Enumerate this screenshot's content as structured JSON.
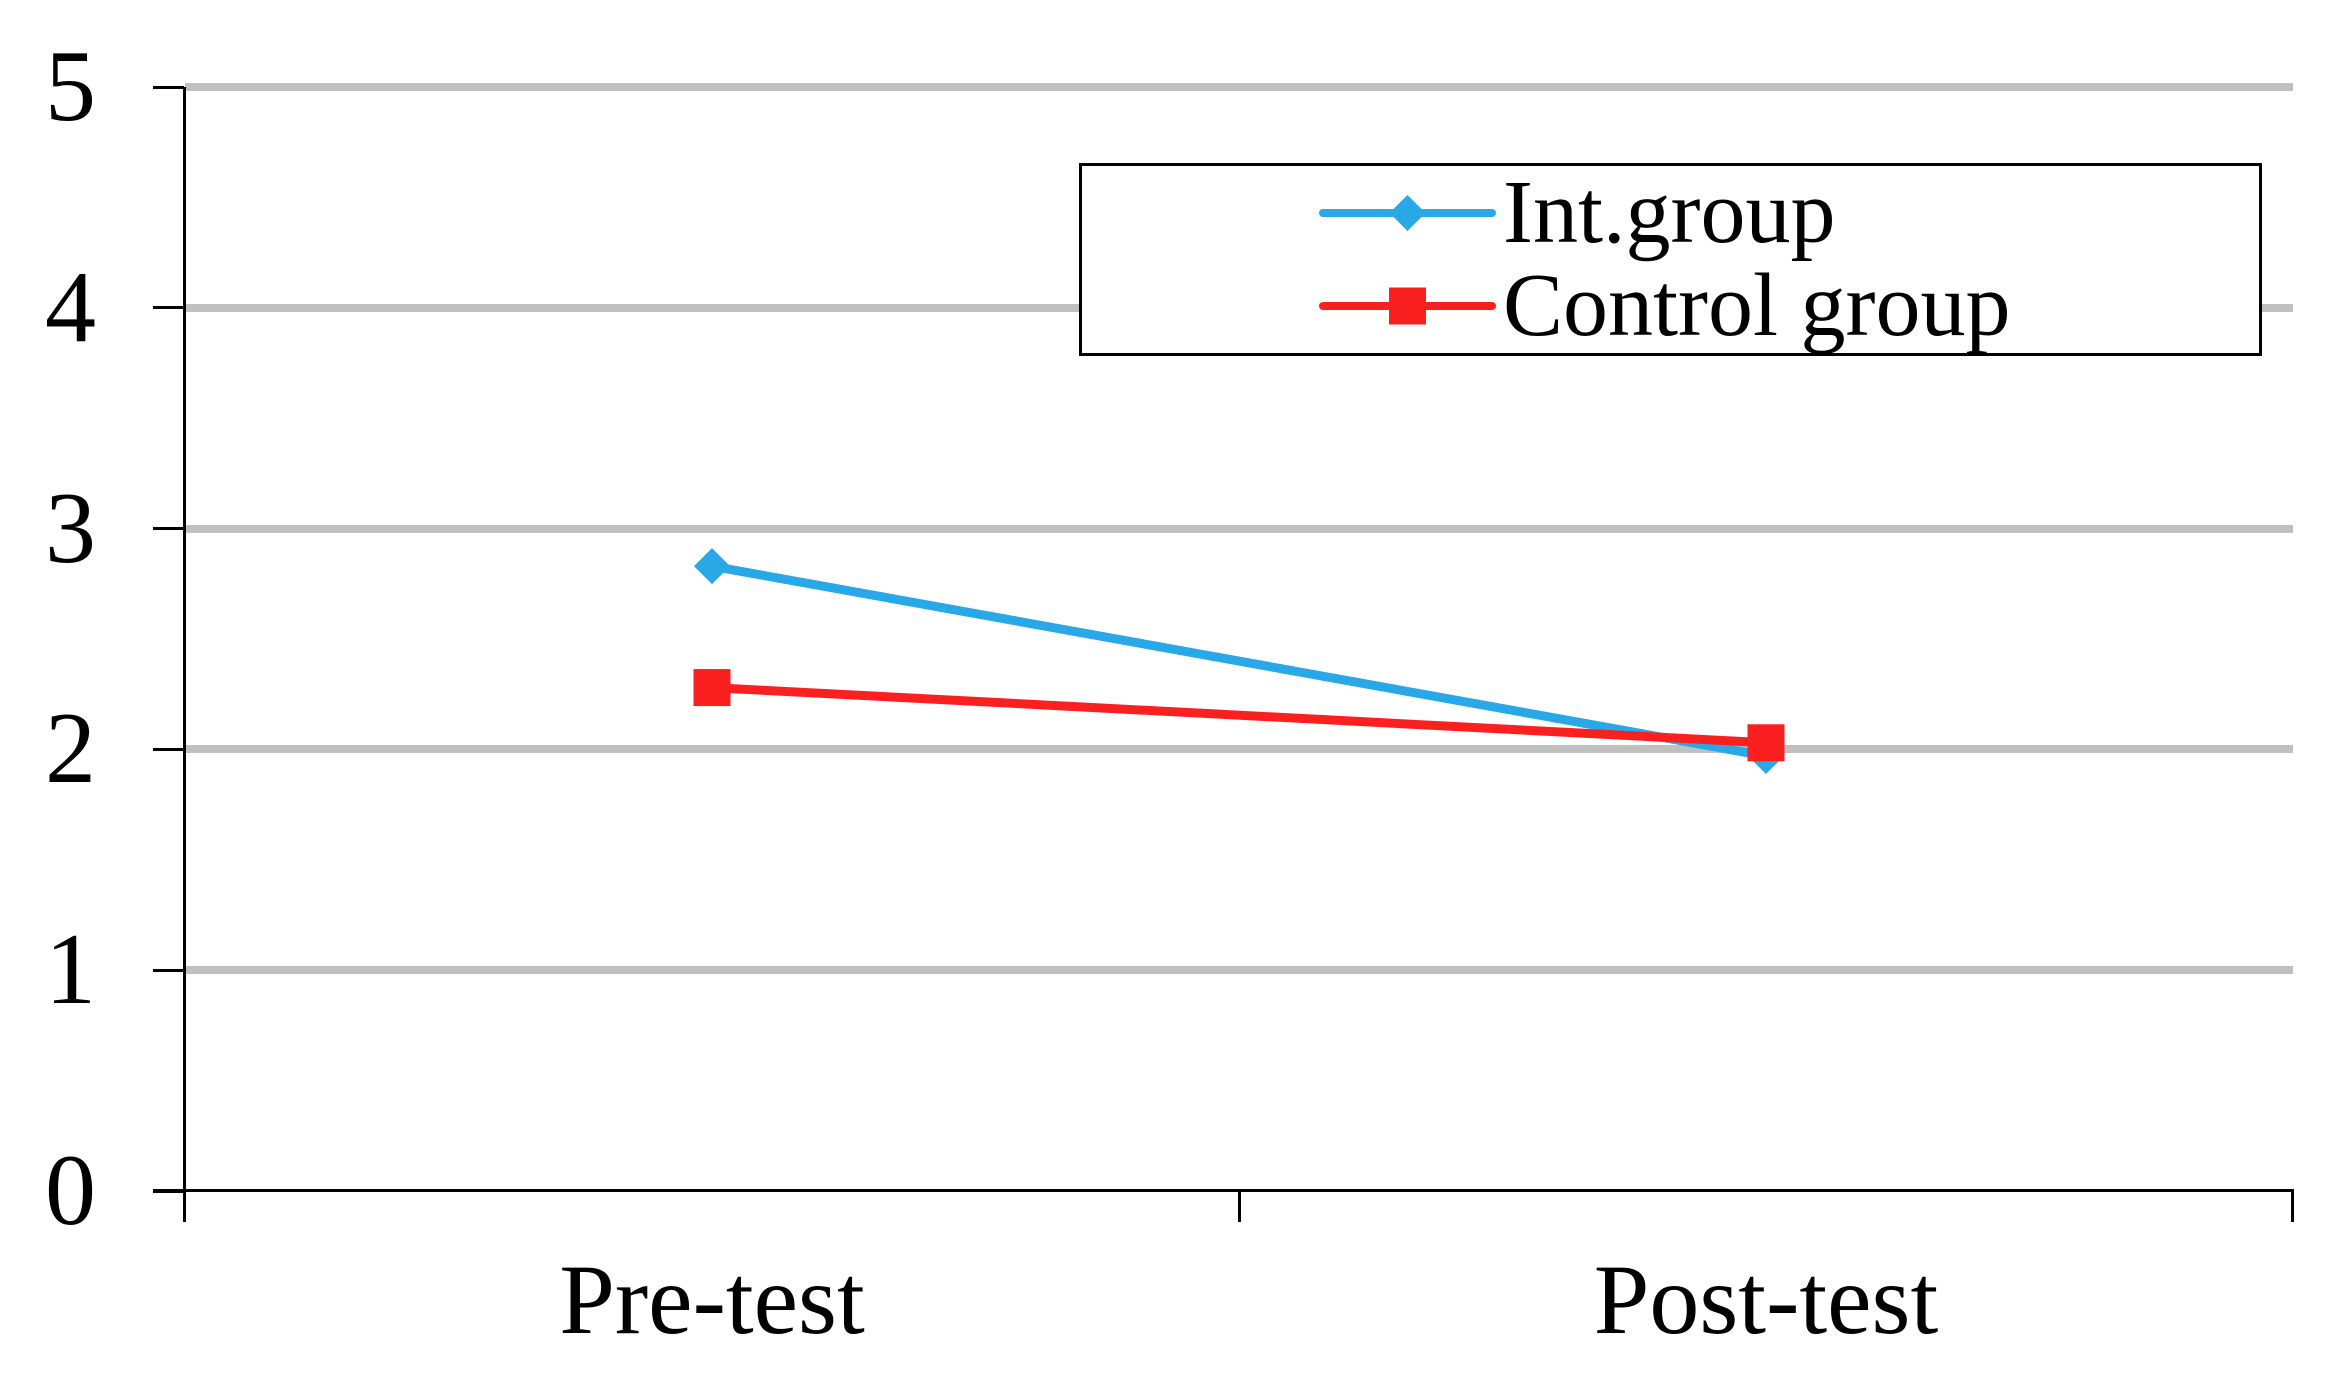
{
  "chart_data": {
    "type": "line",
    "title": "",
    "xlabel": "",
    "ylabel": "",
    "categories": [
      "Pre-test",
      "Post-test"
    ],
    "series": [
      {
        "name": "Int.group",
        "color": "#29A8E8",
        "marker": "diamond",
        "values": [
          2.83,
          1.97
        ]
      },
      {
        "name": "Control group",
        "color": "#FA2020",
        "marker": "square",
        "values": [
          2.28,
          2.03
        ]
      }
    ],
    "ylim": [
      0,
      5
    ],
    "yticks": [
      0,
      1,
      2,
      3,
      4,
      5
    ],
    "grid": "horizontal",
    "gridline_color": "#C0C0C0",
    "axis_color": "#000000",
    "background_color": "#FFFFFF",
    "legend_position": "top-right",
    "legend_border": true
  }
}
